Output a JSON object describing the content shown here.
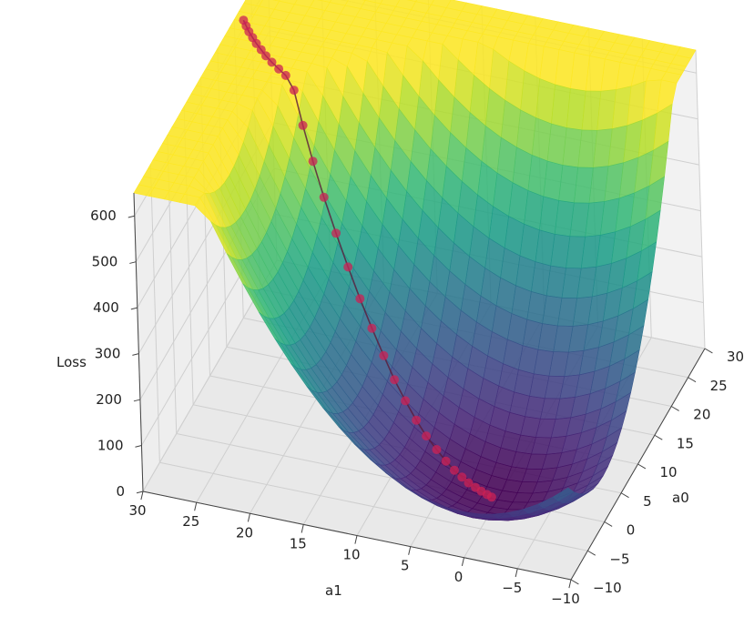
{
  "chart_data": {
    "type": "surface3d",
    "title": "",
    "function": "loss(a0,a1) = a0^2 + a1^2 (paraboloid)",
    "x_axis": {
      "label": "a0",
      "ticks": [
        "−10",
        "−5",
        "0",
        "5",
        "10",
        "15",
        "20",
        "25",
        "30"
      ],
      "range": [
        -10,
        30
      ]
    },
    "y_axis": {
      "label": "a1",
      "ticks": [
        "30",
        "25",
        "20",
        "15",
        "10",
        "5",
        "0",
        "−5",
        "−10"
      ],
      "range": [
        -10,
        30
      ]
    },
    "z_axis": {
      "label": "Loss",
      "ticks": [
        "0",
        "100",
        "200",
        "300",
        "400",
        "500",
        "600"
      ],
      "range": [
        0,
        650
      ]
    },
    "colormap": "viridis",
    "grid": true,
    "path_color": "#cc2255",
    "path": {
      "name": "",
      "a0": [
        0.2,
        0.4,
        0.6,
        0.8,
        1.0,
        1.3,
        1.6,
        2.0,
        2.5,
        3.0,
        3.6,
        4.3,
        5.0,
        5.8,
        6.6,
        7.4,
        8.2,
        9.0,
        9.8,
        10.6,
        11.4,
        12.2,
        13.0,
        13.8,
        14.6,
        15.4,
        16.2,
        17.0,
        17.8,
        18.6,
        19.4,
        20.2
      ],
      "a1": [
        0.6,
        1.1,
        1.7,
        2.3,
        3.0,
        3.7,
        4.5,
        5.4,
        6.4,
        7.5,
        8.6,
        9.8,
        11.0,
        12.2,
        13.5,
        14.8,
        16.1,
        17.4,
        18.7,
        19.9,
        21.0,
        22.0,
        23.0,
        23.9,
        24.8,
        25.6,
        26.3,
        27.0,
        27.6,
        28.2,
        28.7,
        29.2
      ]
    }
  }
}
